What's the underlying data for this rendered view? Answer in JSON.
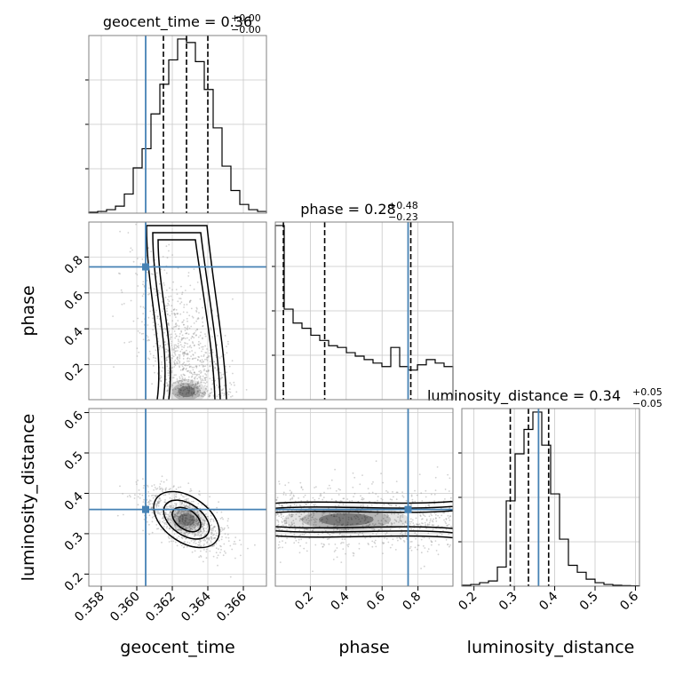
{
  "chart_data": {
    "type": "corner",
    "parameters": [
      "geocent_time",
      "phase",
      "luminosity_distance"
    ],
    "truths": {
      "geocent_time": 0.3605,
      "phase": 0.745,
      "luminosity_distance": 0.36
    },
    "titles": {
      "geocent_time": {
        "prefix": "geocent_time = 0.36",
        "plus": "+0.00",
        "minus": "−0.00"
      },
      "phase": {
        "prefix": "phase = 0.28",
        "plus": "+0.48",
        "minus": "−0.23"
      },
      "luminosity_distance": {
        "prefix": "luminosity_distance = 0.34",
        "plus": "+0.05",
        "minus": "−0.05"
      }
    },
    "axes": {
      "geocent_time": {
        "label": "geocent_time",
        "range": [
          0.3573,
          0.3673
        ],
        "ticks": [
          0.358,
          0.36,
          0.362,
          0.364,
          0.366
        ],
        "tick_labels": [
          "0.358",
          "0.360",
          "0.362",
          "0.364",
          "0.366"
        ]
      },
      "phase": {
        "label": "phase",
        "range": [
          0.005,
          0.995
        ],
        "ticks": [
          0.2,
          0.4,
          0.6,
          0.8
        ],
        "tick_labels": [
          "0.2",
          "0.4",
          "0.6",
          "0.8"
        ]
      },
      "luminosity_distance": {
        "label": "luminosity_distance",
        "range": [
          0.17,
          0.61
        ],
        "ticks": [
          0.2,
          0.3,
          0.4,
          0.5,
          0.6
        ],
        "tick_labels": [
          "0.2",
          "0.3",
          "0.4",
          "0.5",
          "0.6"
        ]
      }
    },
    "histograms": {
      "geocent_time": {
        "edges": [
          0.3573,
          0.3578,
          0.3583,
          0.3588,
          0.3593,
          0.3598,
          0.3603,
          0.3608,
          0.3613,
          0.3618,
          0.3623,
          0.3628,
          0.3633,
          0.3638,
          0.3643,
          0.3648,
          0.3653,
          0.3658,
          0.3663,
          0.3668,
          0.3673
        ],
        "counts": [
          0.5,
          1,
          2,
          4,
          11,
          26,
          37,
          57,
          74,
          88,
          100,
          98,
          87,
          71,
          49,
          27,
          13,
          5,
          2,
          1
        ],
        "quantiles": [
          0.3615,
          0.3628,
          0.364
        ]
      },
      "phase": {
        "edges": [
          0.005,
          0.0545,
          0.104,
          0.1535,
          0.203,
          0.2525,
          0.302,
          0.3515,
          0.401,
          0.4505,
          0.5,
          0.5495,
          0.599,
          0.6485,
          0.698,
          0.7475,
          0.797,
          0.8465,
          0.896,
          0.9455,
          0.995
        ],
        "counts": [
          100,
          52,
          44,
          41,
          37,
          34,
          31,
          30,
          27,
          25,
          23,
          21,
          19,
          30,
          19,
          17,
          20,
          23,
          21,
          19
        ],
        "quantiles": [
          0.05,
          0.28,
          0.76
        ]
      },
      "luminosity_distance": {
        "edges": [
          0.17,
          0.192,
          0.214,
          0.236,
          0.258,
          0.28,
          0.302,
          0.324,
          0.346,
          0.368,
          0.39,
          0.412,
          0.434,
          0.456,
          0.478,
          0.5,
          0.522,
          0.544,
          0.566,
          0.588,
          0.61
        ],
        "counts": [
          0.5,
          1,
          2,
          3,
          11,
          49,
          76,
          90,
          100,
          81,
          53,
          27,
          12,
          8,
          4,
          2,
          1,
          0.5,
          0.3,
          0.2
        ],
        "quantiles": [
          0.29,
          0.335,
          0.385
        ]
      }
    },
    "joint": {
      "phase|geocent_time": {
        "x_mean": 0.3628,
        "y_mean": 0.3,
        "x_sd": 0.0011,
        "y_sd": 0.24
      },
      "luminosity_distance|geocent_time": {
        "x_mean": 0.3628,
        "y_mean": 0.335,
        "x_sd": 0.0012,
        "y_sd": 0.04,
        "corr": -0.6
      },
      "luminosity_distance|phase": {
        "x_mean": 0.4,
        "y_mean": 0.335,
        "x_sd": 0.3,
        "y_sd": 0.04
      }
    },
    "grid": true
  }
}
